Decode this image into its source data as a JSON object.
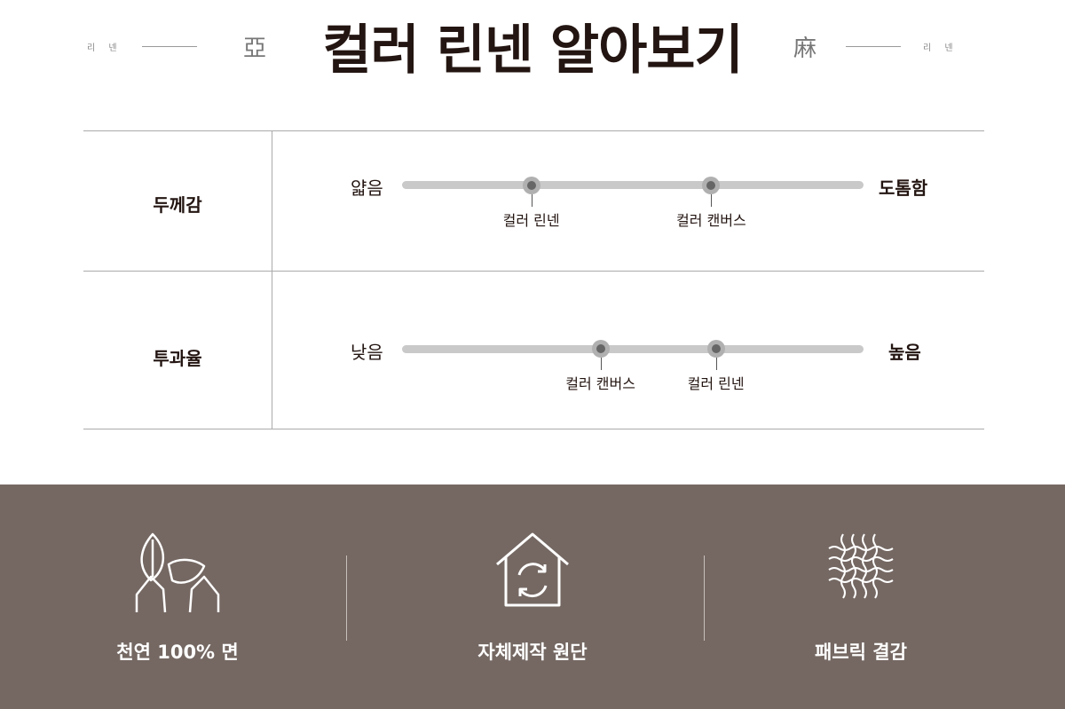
{
  "header": {
    "title": "컬러 린넨 알아보기",
    "left_char": "亞",
    "right_char": "麻",
    "left_small": "리 넨",
    "right_small": "리 넨"
  },
  "rows": [
    {
      "label": "두께감",
      "min_label": "얇음",
      "max_label": "도톰함",
      "markers": [
        {
          "label": "컬러 린넨",
          "value": 0.28
        },
        {
          "label": "컬러 캔버스",
          "value": 0.67
        }
      ]
    },
    {
      "label": "투과율",
      "min_label": "낮음",
      "max_label": "높음",
      "markers": [
        {
          "label": "컬러 캔버스",
          "value": 0.43
        },
        {
          "label": "컬러 린넨",
          "value": 0.68
        }
      ]
    }
  ],
  "features": [
    {
      "icon": "leaf-hands-icon",
      "label": "천연 100% 면"
    },
    {
      "icon": "house-recycle-icon",
      "label": "자체제작 원단"
    },
    {
      "icon": "fabric-weave-icon",
      "label": "패브릭 결감"
    }
  ],
  "colors": {
    "band": "#756863",
    "track": "#c9c9c9",
    "marker": "#666666"
  }
}
